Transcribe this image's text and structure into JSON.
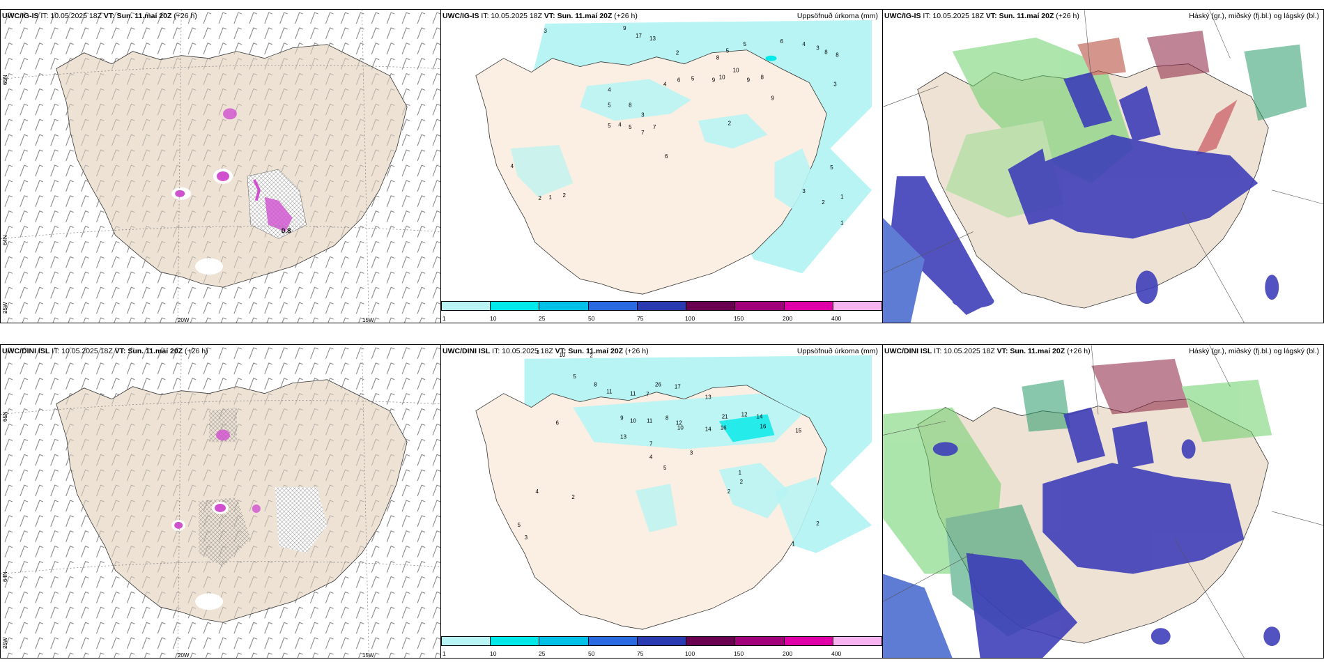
{
  "rows": [
    {
      "model": "UWC/IG-IS",
      "panels": [
        {
          "type": "wind",
          "it_label": "IT: 10.05.2025 18Z",
          "vt_label": "VT: Sun. 11.maí 20Z",
          "lead": "(+26 h)",
          "value_label": "0.8"
        },
        {
          "type": "precip",
          "it_label": "IT: 10.05.2025 18Z",
          "vt_label": "VT: Sun. 11.maí 20Z",
          "lead": "(+26 h)",
          "right_label": "Uppsöfnuð úrkoma (mm)"
        },
        {
          "type": "cloud",
          "it_label": "IT: 10.05.2025 18Z",
          "vt_label": "VT: Sun. 11.maí 20Z",
          "lead": "(+26 h)",
          "right_label": "Háský (gr.), miðský (fj.bl.) og lágský (bl.)"
        }
      ]
    },
    {
      "model": "UWC/DINI ISL",
      "panels": [
        {
          "type": "wind",
          "it_label": "IT: 10.05.2025 18Z",
          "vt_label": "VT: Sun. 11.maí 20Z",
          "lead": "(+26 h)",
          "value_label": ""
        },
        {
          "type": "precip",
          "it_label": "IT: 10.05.2025 18Z",
          "vt_label": "VT: Sun. 11.maí 20Z",
          "lead": "(+26 h)",
          "right_label": "Uppsöfnuð úrkoma (mm)"
        },
        {
          "type": "cloud",
          "it_label": "IT: 10.05.2025 18Z",
          "vt_label": "VT: Sun. 11.maí 20Z",
          "lead": "(+26 h)",
          "right_label": "Háský (gr.), miðský (fj.bl.) og lágský (bl.)"
        }
      ]
    }
  ],
  "axes": {
    "lat_top": "65N",
    "lat_mid": "64N",
    "lon_left": "25W",
    "lon_mid": "20W",
    "lon_right": "15W"
  },
  "colorbar": {
    "ticks": [
      "1",
      "10",
      "25",
      "50",
      "75",
      "100",
      "150",
      "200",
      "400"
    ],
    "colors": [
      "#b8f4f4",
      "#00e8e8",
      "#00c0e8",
      "#2a6ae0",
      "#2a3ab0",
      "#6a0050",
      "#a0007a",
      "#e000a8",
      "#f8b4f0"
    ]
  },
  "colors": {
    "land": "#ede2d4",
    "precip_land": "#fbeee2",
    "light_precip": "#b8f4f4",
    "cloud_low": "#3a3ab8",
    "cloud_mid": "#2a9a6a",
    "cloud_high": "#8a2040"
  },
  "precip_values": {
    "row1": [
      "3",
      "9",
      "17",
      "13",
      "5",
      "6",
      "3",
      "8",
      "5",
      "4",
      "3",
      "8",
      "2",
      "4",
      "8",
      "6",
      "5",
      "9",
      "10",
      "10",
      "9",
      "8",
      "9",
      "4",
      "7",
      "5",
      "4",
      "5",
      "7",
      "6",
      "2",
      "5",
      "3",
      "8",
      "4",
      "2",
      "1",
      "2",
      "3",
      "2",
      "5",
      "1",
      "1"
    ],
    "row2": [
      "3",
      "10",
      "2",
      "5",
      "8",
      "11",
      "11",
      "7",
      "26",
      "17",
      "13",
      "9",
      "10",
      "11",
      "21",
      "12",
      "14",
      "16",
      "14",
      "16",
      "15",
      "6",
      "13",
      "10",
      "8",
      "12",
      "7",
      "4",
      "5",
      "3",
      "2",
      "1",
      "2",
      "4",
      "2",
      "3",
      "5",
      "2",
      "1"
    ]
  }
}
